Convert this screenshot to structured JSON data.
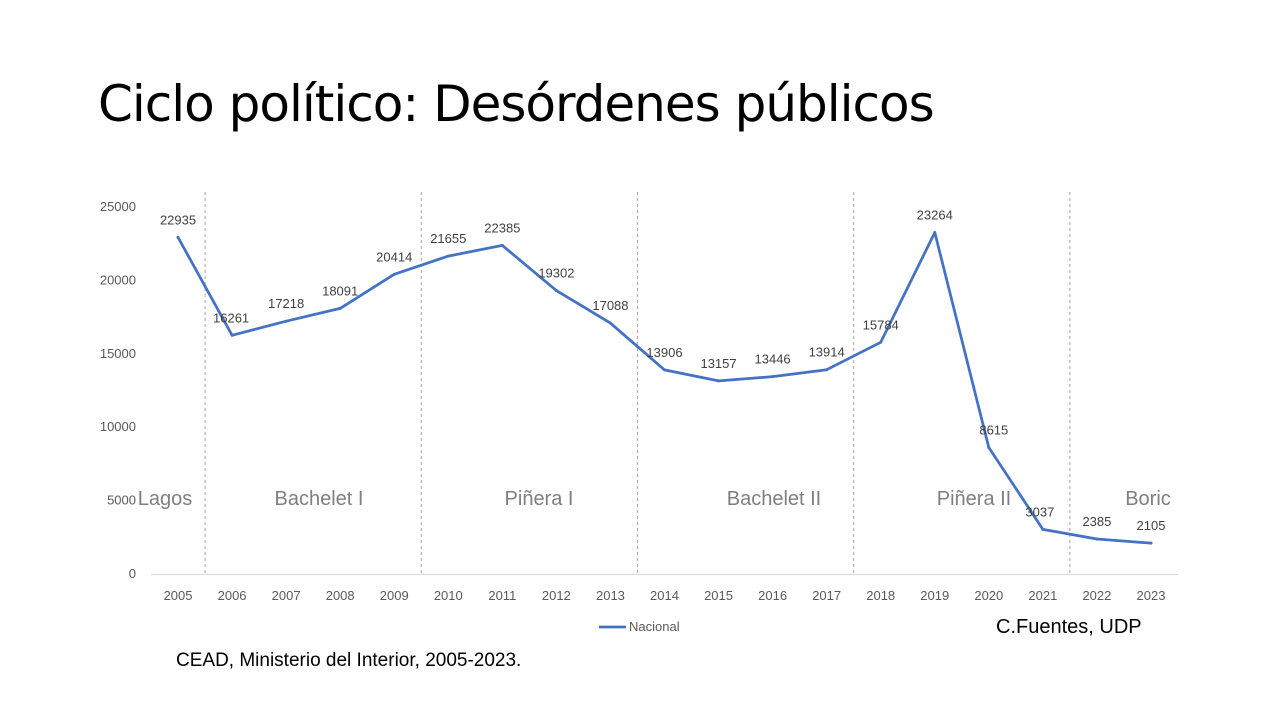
{
  "slide": {
    "title": "Ciclo político: Desórdenes públicos",
    "source": "CEAD, Ministerio del Interior, 2005-2023.",
    "author": "C.Fuentes, UDP"
  },
  "chart_data": {
    "type": "line",
    "categories": [
      "2005",
      "2006",
      "2007",
      "2008",
      "2009",
      "2010",
      "2011",
      "2012",
      "2013",
      "2014",
      "2015",
      "2016",
      "2017",
      "2018",
      "2019",
      "2020",
      "2021",
      "2022",
      "2023"
    ],
    "series": [
      {
        "name": "Nacional",
        "values": [
          22935,
          16261,
          17218,
          18091,
          20414,
          21655,
          22385,
          19302,
          17088,
          13906,
          13157,
          13446,
          13914,
          15784,
          23264,
          8615,
          3037,
          2385,
          2105
        ]
      }
    ],
    "ylim": [
      0,
      25000
    ],
    "yticks": [
      0,
      5000,
      10000,
      15000,
      20000,
      25000
    ],
    "grid": false,
    "legend_position": "bottom",
    "line_color": "#4472c4",
    "periods": [
      {
        "label": "Lagos"
      },
      {
        "label": "Bachelet I"
      },
      {
        "label": "Piñera I"
      },
      {
        "label": "Bachelet II"
      },
      {
        "label": "Piñera II"
      },
      {
        "label": "Boric"
      }
    ],
    "period_dividers": [
      "2006",
      "2010",
      "2014",
      "2018",
      "2022"
    ]
  }
}
